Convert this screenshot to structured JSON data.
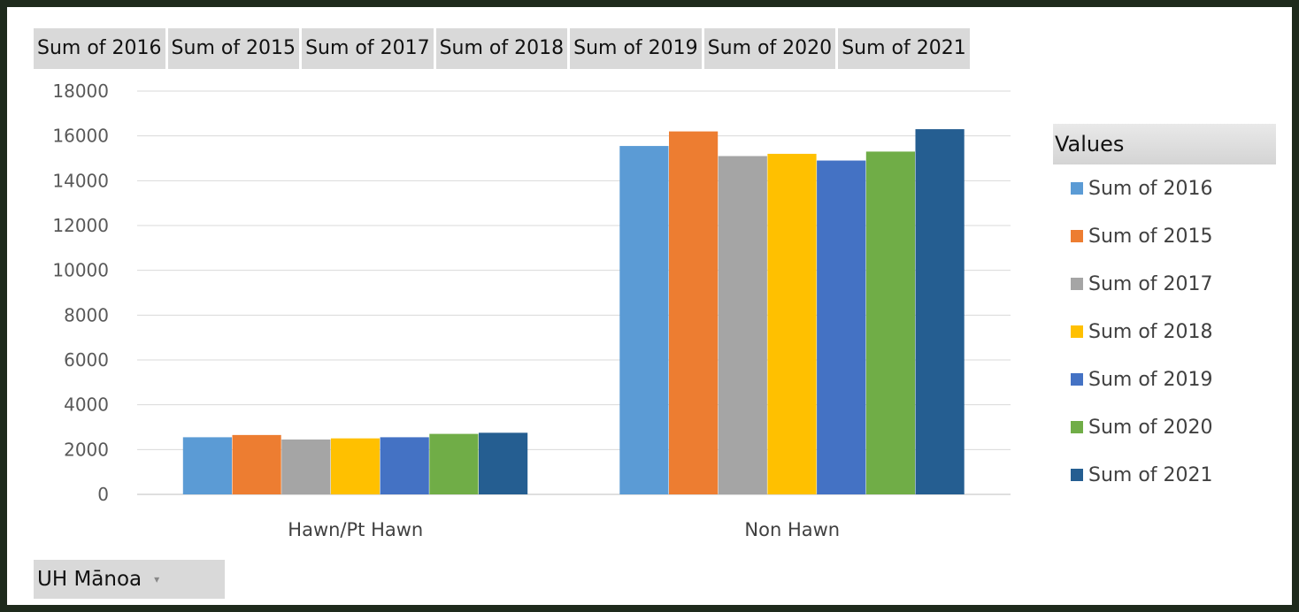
{
  "field_buttons": [
    "Sum of 2016",
    "Sum of 2015",
    "Sum of 2017",
    "Sum of 2018",
    "Sum of 2019",
    "Sum of 2020",
    "Sum of 2021"
  ],
  "legend": {
    "title": "Values",
    "items": [
      "Sum of 2016",
      "Sum of 2015",
      "Sum of 2017",
      "Sum of 2018",
      "Sum of 2019",
      "Sum of 2020",
      "Sum of 2021"
    ]
  },
  "filter": {
    "label": "UH Mānoa",
    "icon": "dropdown-icon"
  },
  "chart_data": {
    "type": "bar",
    "categories": [
      "Hawn/Pt Hawn",
      "Non Hawn"
    ],
    "series": [
      {
        "name": "Sum of 2016",
        "color": "#5b9bd5",
        "values": [
          2550,
          15550
        ]
      },
      {
        "name": "Sum of 2015",
        "color": "#ed7d31",
        "values": [
          2650,
          16200
        ]
      },
      {
        "name": "Sum of 2017",
        "color": "#a5a5a5",
        "values": [
          2450,
          15100
        ]
      },
      {
        "name": "Sum of 2018",
        "color": "#ffc000",
        "values": [
          2500,
          15200
        ]
      },
      {
        "name": "Sum of 2019",
        "color": "#4472c4",
        "values": [
          2550,
          14900
        ]
      },
      {
        "name": "Sum of 2020",
        "color": "#70ad47",
        "values": [
          2700,
          15300
        ]
      },
      {
        "name": "Sum of 2021",
        "color": "#255e91",
        "values": [
          2750,
          16300
        ]
      }
    ],
    "yticks": [
      0,
      2000,
      4000,
      6000,
      8000,
      10000,
      12000,
      14000,
      16000,
      18000
    ],
    "ylim": [
      0,
      18000
    ],
    "grid": true,
    "legend_position": "right"
  }
}
